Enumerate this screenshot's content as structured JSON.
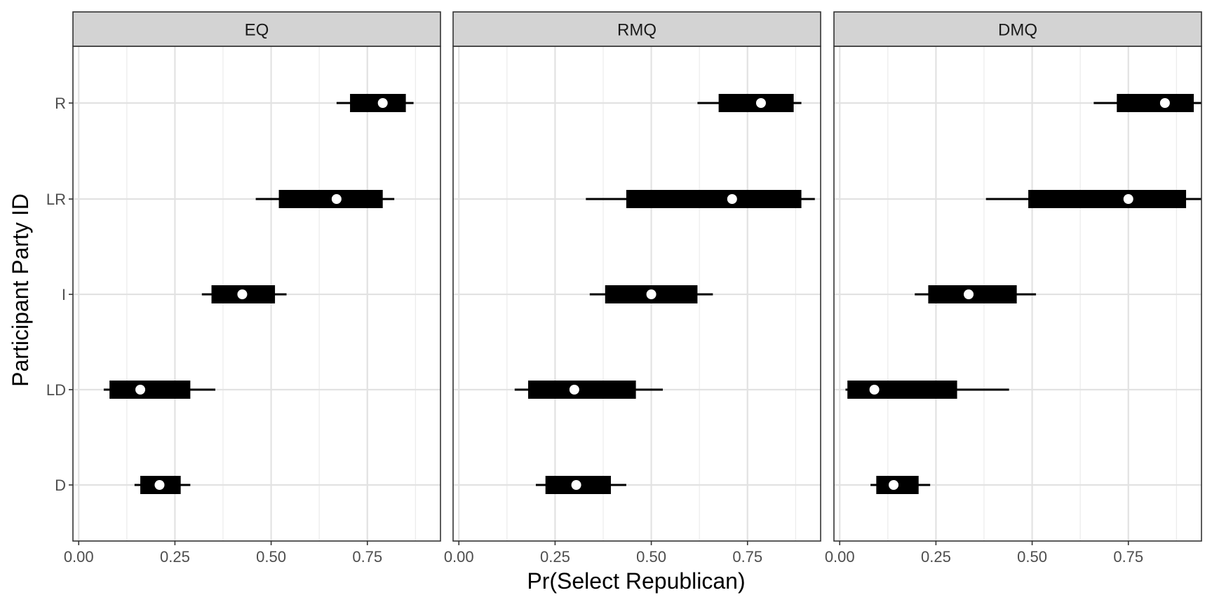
{
  "chart_data": {
    "type": "interval",
    "xlabel": "Pr(Select Republican)",
    "ylabel": "Participant Party ID",
    "x_ticks": [
      "0.00",
      "0.25",
      "0.50",
      "0.75"
    ],
    "xlim": [
      -0.015,
      0.94
    ],
    "categories": [
      "R",
      "LR",
      "I",
      "LD",
      "D"
    ],
    "panels": [
      {
        "name": "EQ",
        "rows": [
          {
            "category": "R",
            "point": 0.79,
            "inner": [
              0.705,
              0.85
            ],
            "outer": [
              0.67,
              0.87
            ]
          },
          {
            "category": "LR",
            "point": 0.67,
            "inner": [
              0.52,
              0.79
            ],
            "outer": [
              0.46,
              0.82
            ]
          },
          {
            "category": "I",
            "point": 0.425,
            "inner": [
              0.345,
              0.51
            ],
            "outer": [
              0.32,
              0.54
            ]
          },
          {
            "category": "LD",
            "point": 0.16,
            "inner": [
              0.08,
              0.29
            ],
            "outer": [
              0.065,
              0.355
            ]
          },
          {
            "category": "D",
            "point": 0.21,
            "inner": [
              0.16,
              0.265
            ],
            "outer": [
              0.145,
              0.29
            ]
          }
        ]
      },
      {
        "name": "RMQ",
        "rows": [
          {
            "category": "R",
            "point": 0.785,
            "inner": [
              0.675,
              0.87
            ],
            "outer": [
              0.62,
              0.89
            ]
          },
          {
            "category": "LR",
            "point": 0.71,
            "inner": [
              0.435,
              0.89
            ],
            "outer": [
              0.33,
              0.925
            ]
          },
          {
            "category": "I",
            "point": 0.5,
            "inner": [
              0.38,
              0.62
            ],
            "outer": [
              0.34,
              0.66
            ]
          },
          {
            "category": "LD",
            "point": 0.3,
            "inner": [
              0.18,
              0.46
            ],
            "outer": [
              0.145,
              0.53
            ]
          },
          {
            "category": "D",
            "point": 0.305,
            "inner": [
              0.225,
              0.395
            ],
            "outer": [
              0.2,
              0.435
            ]
          }
        ]
      },
      {
        "name": "DMQ",
        "rows": [
          {
            "category": "R",
            "point": 0.845,
            "inner": [
              0.72,
              0.92
            ],
            "outer": [
              0.66,
              0.94
            ]
          },
          {
            "category": "LR",
            "point": 0.75,
            "inner": [
              0.49,
              0.9
            ],
            "outer": [
              0.38,
              0.94
            ]
          },
          {
            "category": "I",
            "point": 0.335,
            "inner": [
              0.23,
              0.46
            ],
            "outer": [
              0.195,
              0.51
            ]
          },
          {
            "category": "LD",
            "point": 0.09,
            "inner": [
              0.02,
              0.305
            ],
            "outer": [
              0.015,
              0.44
            ]
          },
          {
            "category": "D",
            "point": 0.14,
            "inner": [
              0.095,
              0.205
            ],
            "outer": [
              0.08,
              0.235
            ]
          }
        ]
      }
    ]
  }
}
